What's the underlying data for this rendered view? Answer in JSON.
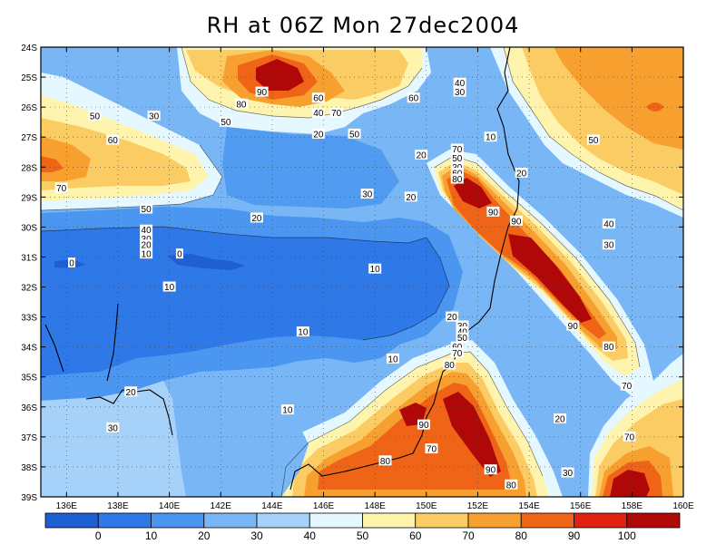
{
  "title": "RH at 06Z Mon 27dec2004",
  "map": {
    "lon_range": [
      135,
      160
    ],
    "lat_range": [
      -39,
      -24
    ],
    "x_ticks": [
      {
        "v": 136,
        "label": "136E"
      },
      {
        "v": 138,
        "label": "138E"
      },
      {
        "v": 140,
        "label": "140E"
      },
      {
        "v": 142,
        "label": "142E"
      },
      {
        "v": 144,
        "label": "144E"
      },
      {
        "v": 146,
        "label": "146E"
      },
      {
        "v": 148,
        "label": "148E"
      },
      {
        "v": 150,
        "label": "150E"
      },
      {
        "v": 152,
        "label": "152E"
      },
      {
        "v": 154,
        "label": "154E"
      },
      {
        "v": 156,
        "label": "156E"
      },
      {
        "v": 158,
        "label": "158E"
      },
      {
        "v": 160,
        "label": "160E"
      }
    ],
    "y_ticks": [
      {
        "v": -24,
        "label": "24S"
      },
      {
        "v": -25,
        "label": "25S"
      },
      {
        "v": -26,
        "label": "26S"
      },
      {
        "v": -27,
        "label": "27S"
      },
      {
        "v": -28,
        "label": "28S"
      },
      {
        "v": -29,
        "label": "29S"
      },
      {
        "v": -30,
        "label": "30S"
      },
      {
        "v": -31,
        "label": "31S"
      },
      {
        "v": -32,
        "label": "32S"
      },
      {
        "v": -33,
        "label": "33S"
      },
      {
        "v": -34,
        "label": "34S"
      },
      {
        "v": -35,
        "label": "35S"
      },
      {
        "v": -36,
        "label": "36S"
      },
      {
        "v": -37,
        "label": "37S"
      },
      {
        "v": -38,
        "label": "38S"
      },
      {
        "v": -39,
        "label": "39S"
      }
    ],
    "contour_labels": [
      {
        "lon": 143.6,
        "lat": -25.5,
        "text": "90"
      },
      {
        "lon": 142.8,
        "lat": -25.9,
        "text": "80"
      },
      {
        "lon": 145.8,
        "lat": -25.7,
        "text": "60"
      },
      {
        "lon": 146.5,
        "lat": -26.2,
        "text": "70"
      },
      {
        "lon": 145.8,
        "lat": -26.2,
        "text": "40"
      },
      {
        "lon": 142.2,
        "lat": -26.5,
        "text": "50"
      },
      {
        "lon": 139.4,
        "lat": -26.3,
        "text": "30"
      },
      {
        "lon": 137.1,
        "lat": -26.3,
        "text": "50"
      },
      {
        "lon": 137.8,
        "lat": -27.1,
        "text": "60"
      },
      {
        "lon": 145.8,
        "lat": -26.9,
        "text": "20"
      },
      {
        "lon": 147.2,
        "lat": -26.9,
        "text": "50"
      },
      {
        "lon": 149.5,
        "lat": -25.7,
        "text": "60"
      },
      {
        "lon": 151.3,
        "lat": -25.2,
        "text": "40"
      },
      {
        "lon": 151.3,
        "lat": -25.5,
        "text": "30"
      },
      {
        "lon": 152.5,
        "lat": -27.0,
        "text": "10"
      },
      {
        "lon": 149.8,
        "lat": -27.6,
        "text": "20"
      },
      {
        "lon": 156.5,
        "lat": -27.1,
        "text": "50"
      },
      {
        "lon": 151.2,
        "lat": -27.4,
        "text": "70"
      },
      {
        "lon": 151.2,
        "lat": -27.7,
        "text": "50"
      },
      {
        "lon": 151.2,
        "lat": -28.0,
        "text": "30"
      },
      {
        "lon": 151.2,
        "lat": -28.2,
        "text": "60"
      },
      {
        "lon": 151.2,
        "lat": -28.4,
        "text": "80"
      },
      {
        "lon": 153.7,
        "lat": -28.2,
        "text": "20"
      },
      {
        "lon": 135.8,
        "lat": -28.7,
        "text": "70"
      },
      {
        "lon": 147.7,
        "lat": -28.9,
        "text": "30"
      },
      {
        "lon": 149.4,
        "lat": -29.0,
        "text": "20"
      },
      {
        "lon": 152.6,
        "lat": -29.5,
        "text": "90"
      },
      {
        "lon": 153.5,
        "lat": -29.8,
        "text": "90"
      },
      {
        "lon": 139.1,
        "lat": -29.4,
        "text": "50"
      },
      {
        "lon": 143.4,
        "lat": -29.7,
        "text": "20"
      },
      {
        "lon": 139.1,
        "lat": -30.1,
        "text": "40"
      },
      {
        "lon": 139.1,
        "lat": -30.4,
        "text": "30"
      },
      {
        "lon": 139.1,
        "lat": -30.6,
        "text": "20"
      },
      {
        "lon": 139.1,
        "lat": -30.9,
        "text": "10"
      },
      {
        "lon": 140.4,
        "lat": -30.9,
        "text": "0"
      },
      {
        "lon": 136.2,
        "lat": -31.2,
        "text": "0"
      },
      {
        "lon": 157.1,
        "lat": -29.9,
        "text": "40"
      },
      {
        "lon": 157.1,
        "lat": -30.6,
        "text": "30"
      },
      {
        "lon": 148.0,
        "lat": -31.4,
        "text": "10"
      },
      {
        "lon": 140.0,
        "lat": -32.0,
        "text": "10"
      },
      {
        "lon": 155.7,
        "lat": -33.3,
        "text": "90"
      },
      {
        "lon": 151.0,
        "lat": -33.0,
        "text": "20"
      },
      {
        "lon": 151.4,
        "lat": -33.3,
        "text": "30"
      },
      {
        "lon": 151.4,
        "lat": -33.5,
        "text": "40"
      },
      {
        "lon": 151.4,
        "lat": -33.7,
        "text": "50"
      },
      {
        "lon": 151.2,
        "lat": -34.0,
        "text": "60"
      },
      {
        "lon": 151.2,
        "lat": -34.2,
        "text": "70"
      },
      {
        "lon": 150.9,
        "lat": -34.6,
        "text": "80"
      },
      {
        "lon": 145.2,
        "lat": -33.5,
        "text": "10"
      },
      {
        "lon": 157.1,
        "lat": -34.0,
        "text": "80"
      },
      {
        "lon": 148.7,
        "lat": -34.4,
        "text": "10"
      },
      {
        "lon": 157.8,
        "lat": -35.3,
        "text": "70"
      },
      {
        "lon": 138.5,
        "lat": -35.5,
        "text": "20"
      },
      {
        "lon": 144.6,
        "lat": -36.1,
        "text": "10"
      },
      {
        "lon": 149.9,
        "lat": -36.6,
        "text": "90"
      },
      {
        "lon": 155.2,
        "lat": -36.4,
        "text": "20"
      },
      {
        "lon": 137.8,
        "lat": -36.7,
        "text": "30"
      },
      {
        "lon": 150.2,
        "lat": -37.4,
        "text": "70"
      },
      {
        "lon": 157.9,
        "lat": -37.0,
        "text": "70"
      },
      {
        "lon": 148.4,
        "lat": -37.8,
        "text": "80"
      },
      {
        "lon": 152.5,
        "lat": -38.1,
        "text": "90"
      },
      {
        "lon": 153.3,
        "lat": -38.6,
        "text": "80"
      },
      {
        "lon": 155.5,
        "lat": -38.2,
        "text": "30"
      }
    ]
  },
  "colorbar": {
    "labels": [
      "0",
      "10",
      "20",
      "30",
      "40",
      "50",
      "60",
      "70",
      "80",
      "90",
      "100"
    ],
    "colors": [
      "#1e5fd2",
      "#2e78e8",
      "#4a96f0",
      "#78b6f6",
      "#a6d2fa",
      "#e6f8ff",
      "#fff4ae",
      "#fbcc64",
      "#f7a030",
      "#f06418",
      "#e02010",
      "#b00808"
    ]
  }
}
